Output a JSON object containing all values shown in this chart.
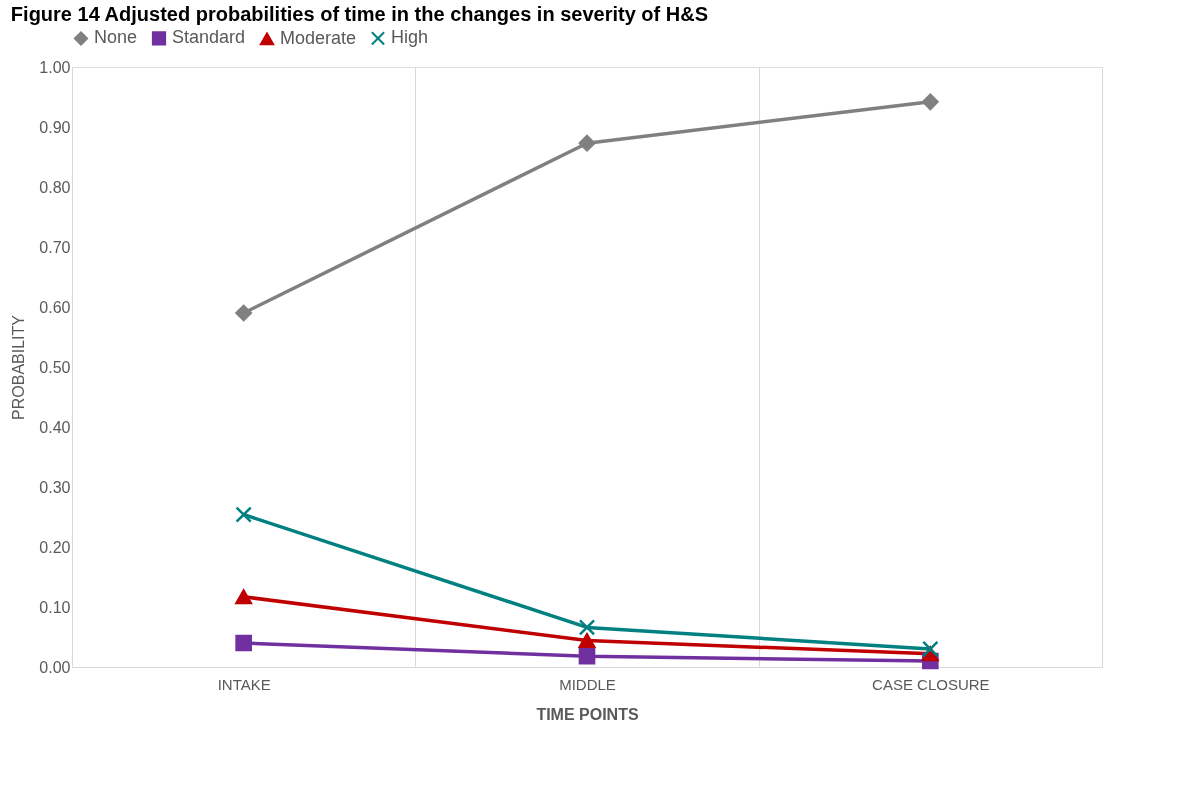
{
  "chart_data": {
    "type": "line",
    "title": "Figure 14 Adjusted probabilities of time in the changes in severity of H&S",
    "categories": [
      "INTAKE",
      "MIDDLE",
      "CASE CLOSURE"
    ],
    "series": [
      {
        "name": "None",
        "color": "#808080",
        "marker": "diamond",
        "values": [
          0.59,
          0.873,
          0.942
        ]
      },
      {
        "name": "Standard",
        "color": "#7030a0",
        "marker": "square",
        "values": [
          0.04,
          0.018,
          0.01
        ]
      },
      {
        "name": "Moderate",
        "color": "#c00000",
        "marker": "triangle",
        "values": [
          0.117,
          0.044,
          0.022
        ]
      },
      {
        "name": "High",
        "color": "#008080",
        "marker": "cross",
        "values": [
          0.254,
          0.066,
          0.03
        ]
      }
    ],
    "xlabel": "TIME POINTS",
    "ylabel": "PROBABILITY",
    "ylim": [
      0,
      1
    ],
    "yticks": [
      {
        "value": 0,
        "label": "0.00"
      },
      {
        "value": 0.1,
        "label": "0.10"
      },
      {
        "value": 0.2,
        "label": "0.20"
      },
      {
        "value": 0.3,
        "label": "0.30"
      },
      {
        "value": 0.4,
        "label": "0.40"
      },
      {
        "value": 0.5,
        "label": "0.50"
      },
      {
        "value": 0.6,
        "label": "0.60"
      },
      {
        "value": 0.7,
        "label": "0.70"
      },
      {
        "value": 0.8,
        "label": "0.80"
      },
      {
        "value": 0.9,
        "label": "0.90"
      },
      {
        "value": 1,
        "label": "1.00"
      }
    ],
    "grid": "x",
    "legend": "top",
    "line_style": "solid"
  }
}
